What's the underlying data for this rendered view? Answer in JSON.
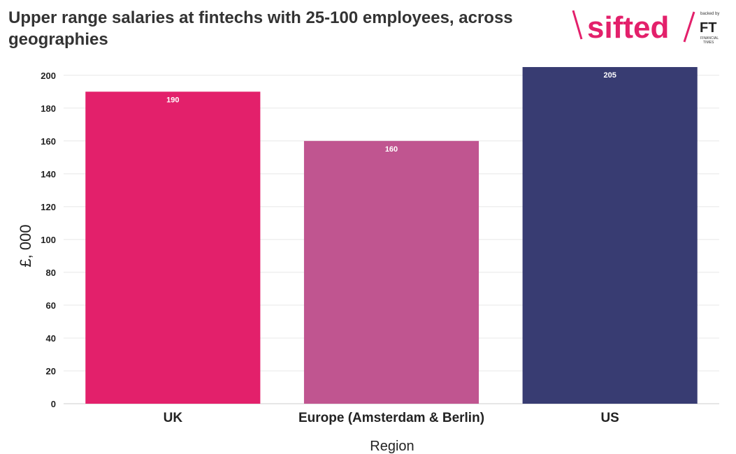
{
  "header": {
    "title": "Upper range salaries at fintechs with 25-100 employees, across geographies"
  },
  "logo": {
    "brand": "sifted",
    "backed_by": "backed by",
    "ft_mark": "FT",
    "ft_name_line1": "FINANCIAL",
    "ft_name_line2": "TIMES",
    "brand_color": "#e3206b"
  },
  "chart_data": {
    "type": "bar",
    "title": "Upper range salaries at fintechs with 25-100 employees, across geographies",
    "xlabel": "Region",
    "ylabel": "£, 000",
    "categories": [
      "UK",
      "Europe (Amsterdam & Berlin)",
      "US"
    ],
    "values": [
      190,
      160,
      205
    ],
    "data_labels": [
      "190",
      "160",
      "205"
    ],
    "colors": [
      "#e3206b",
      "#c05590",
      "#383c72"
    ],
    "ylim": [
      0,
      205
    ],
    "yticks": [
      0,
      20,
      40,
      60,
      80,
      100,
      120,
      140,
      160,
      180,
      200
    ],
    "grid": true,
    "legend": "none"
  }
}
